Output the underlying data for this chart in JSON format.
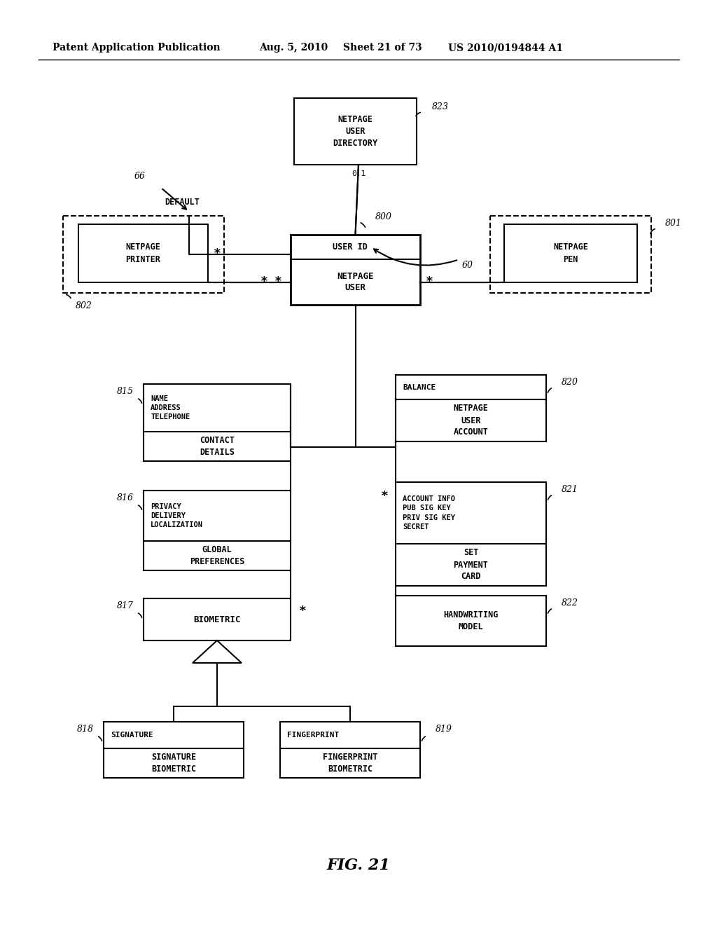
{
  "bg_color": "#ffffff",
  "header_text": "Patent Application Publication",
  "header_date": "Aug. 5, 2010",
  "header_sheet": "Sheet 21 of 73",
  "header_patent": "US 2010/0194844 A1",
  "figure_label": "FIG. 21"
}
